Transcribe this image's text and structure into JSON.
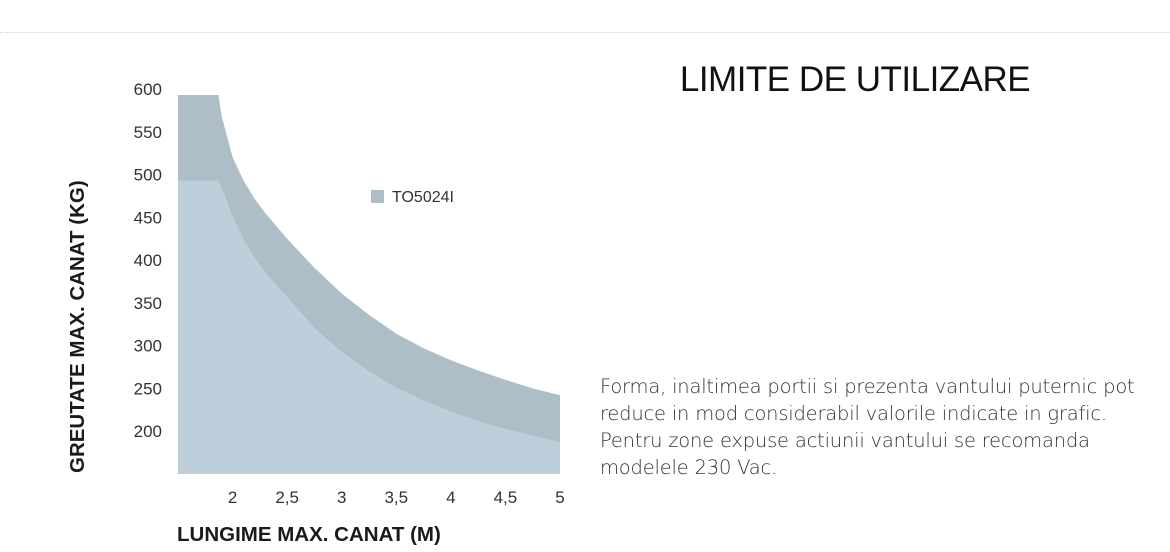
{
  "page": {
    "title": "LIMITE DE UTILIZARE",
    "note": "Forma, inaltimea portii si prezenta vantului puternic pot reduce in mod considerabil valorile indicate in grafic.  Pentru zone expuse actiunii vantului se recomanda modelele 230 Vac."
  },
  "chart_data": {
    "type": "area",
    "xlabel": "LUNGIME MAX. CANAT (M)",
    "ylabel": "GREUTATE MAX. CANAT (KG)",
    "x_ticks": [
      "2",
      "2,5",
      "3",
      "3,5",
      "4",
      "4,5",
      "5"
    ],
    "y_ticks": [
      "600",
      "550",
      "500",
      "450",
      "400",
      "350",
      "300",
      "250",
      "200"
    ],
    "xlim": [
      1.5,
      5
    ],
    "ylim": [
      150,
      600
    ],
    "grid": false,
    "legend": {
      "position": "top-center",
      "label": "TO5024I"
    },
    "colors": {
      "outer": "#adbec6",
      "inner": "#bdcfda",
      "legend": "#adbec6"
    },
    "series": [
      {
        "name": "TO5024I",
        "role": "outer",
        "x": [
          1.5,
          1.87,
          1.9,
          2.0,
          2.1,
          2.2,
          2.3,
          2.4,
          2.5,
          2.75,
          3.0,
          3.25,
          3.5,
          3.75,
          4.0,
          4.25,
          4.5,
          4.75,
          5.0
        ],
        "y": [
          593,
          593,
          568,
          520,
          493,
          472,
          455,
          440,
          425,
          391,
          361,
          336,
          314,
          297,
          283,
          271,
          260,
          250,
          242
        ]
      },
      {
        "role": "inner",
        "x": [
          1.5,
          1.87,
          1.9,
          2.0,
          2.1,
          2.2,
          2.3,
          2.4,
          2.5,
          2.75,
          3.0,
          3.25,
          3.5,
          3.75,
          4.0,
          4.25,
          4.5,
          4.75,
          5.0
        ],
        "y": [
          493,
          493,
          485,
          451,
          425,
          403,
          386,
          371,
          357,
          321,
          293,
          270,
          251,
          236,
          223,
          212,
          203,
          195,
          187
        ]
      }
    ]
  }
}
